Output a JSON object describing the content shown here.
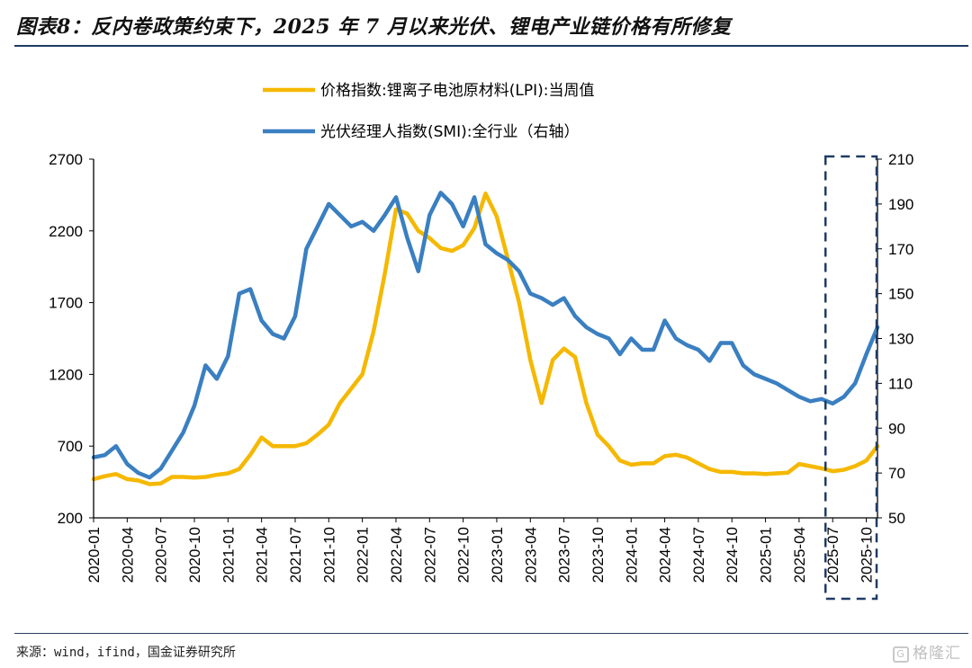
{
  "header": {
    "title": "图表8：反内卷政策约束下，2025 年 7 月以来光伏、锂电产业链价格有所修复"
  },
  "footer": {
    "source": "来源：wind，ifind，国金证券研究所",
    "watermark": "格隆汇",
    "watermark_glyph": "G"
  },
  "chart_data": {
    "type": "line",
    "x_tick_labels": [
      "2020-01",
      "2020-04",
      "2020-07",
      "2020-10",
      "2021-01",
      "2021-04",
      "2021-07",
      "2021-10",
      "2022-01",
      "2022-04",
      "2022-07",
      "2022-10",
      "2023-01",
      "2023-04",
      "2023-07",
      "2023-10",
      "2024-01",
      "2024-04",
      "2024-07",
      "2024-10",
      "2025-01",
      "2025-04",
      "2025-07",
      "2025-10"
    ],
    "x_range": [
      "2020-01",
      "2025-11"
    ],
    "y_left": {
      "min": 200,
      "max": 2700,
      "ticks": [
        200,
        700,
        1200,
        1700,
        2200,
        2700
      ]
    },
    "y_right": {
      "min": 50,
      "max": 210,
      "ticks": [
        50,
        70,
        90,
        110,
        130,
        150,
        170,
        190,
        210
      ]
    },
    "grid": false,
    "legend_position": "top-center",
    "highlight_box": {
      "from": "2025-07",
      "to": "2025-11"
    },
    "series": [
      {
        "name": "价格指数:锂离子电池原材料(LPI):当周值",
        "axis": "left",
        "color": "#f5b800",
        "points": [
          [
            "2020-01",
            470
          ],
          [
            "2020-02",
            490
          ],
          [
            "2020-03",
            505
          ],
          [
            "2020-04",
            470
          ],
          [
            "2020-05",
            460
          ],
          [
            "2020-06",
            435
          ],
          [
            "2020-07",
            440
          ],
          [
            "2020-08",
            485
          ],
          [
            "2020-09",
            485
          ],
          [
            "2020-10",
            480
          ],
          [
            "2020-11",
            485
          ],
          [
            "2020-12",
            500
          ],
          [
            "2021-01",
            510
          ],
          [
            "2021-02",
            540
          ],
          [
            "2021-03",
            640
          ],
          [
            "2021-04",
            760
          ],
          [
            "2021-05",
            700
          ],
          [
            "2021-06",
            700
          ],
          [
            "2021-07",
            700
          ],
          [
            "2021-08",
            720
          ],
          [
            "2021-09",
            780
          ],
          [
            "2021-10",
            850
          ],
          [
            "2021-11",
            1000
          ],
          [
            "2021-12",
            1100
          ],
          [
            "2022-01",
            1200
          ],
          [
            "2022-02",
            1500
          ],
          [
            "2022-03",
            1900
          ],
          [
            "2022-04",
            2350
          ],
          [
            "2022-05",
            2320
          ],
          [
            "2022-06",
            2200
          ],
          [
            "2022-07",
            2150
          ],
          [
            "2022-08",
            2080
          ],
          [
            "2022-09",
            2060
          ],
          [
            "2022-10",
            2100
          ],
          [
            "2022-11",
            2220
          ],
          [
            "2022-12",
            2460
          ],
          [
            "2023-01",
            2300
          ],
          [
            "2023-02",
            2000
          ],
          [
            "2023-03",
            1700
          ],
          [
            "2023-04",
            1300
          ],
          [
            "2023-05",
            1000
          ],
          [
            "2023-06",
            1300
          ],
          [
            "2023-07",
            1380
          ],
          [
            "2023-08",
            1320
          ],
          [
            "2023-09",
            1000
          ],
          [
            "2023-10",
            780
          ],
          [
            "2023-11",
            700
          ],
          [
            "2023-12",
            600
          ],
          [
            "2024-01",
            570
          ],
          [
            "2024-02",
            580
          ],
          [
            "2024-03",
            580
          ],
          [
            "2024-04",
            630
          ],
          [
            "2024-05",
            640
          ],
          [
            "2024-06",
            620
          ],
          [
            "2024-07",
            580
          ],
          [
            "2024-08",
            540
          ],
          [
            "2024-09",
            520
          ],
          [
            "2024-10",
            520
          ],
          [
            "2024-11",
            510
          ],
          [
            "2024-12",
            510
          ],
          [
            "2025-01",
            505
          ],
          [
            "2025-02",
            510
          ],
          [
            "2025-03",
            515
          ],
          [
            "2025-04",
            575
          ],
          [
            "2025-05",
            560
          ],
          [
            "2025-06",
            545
          ],
          [
            "2025-07",
            525
          ],
          [
            "2025-08",
            535
          ],
          [
            "2025-09",
            560
          ],
          [
            "2025-10",
            600
          ],
          [
            "2025-11",
            700
          ]
        ]
      },
      {
        "name": "光伏经理人指数(SMI):全行业（右轴）",
        "axis": "right",
        "color": "#3a7fc1",
        "points": [
          [
            "2020-01",
            77
          ],
          [
            "2020-02",
            78
          ],
          [
            "2020-03",
            82
          ],
          [
            "2020-04",
            74
          ],
          [
            "2020-05",
            70
          ],
          [
            "2020-06",
            68
          ],
          [
            "2020-07",
            72
          ],
          [
            "2020-08",
            80
          ],
          [
            "2020-09",
            88
          ],
          [
            "2020-10",
            100
          ],
          [
            "2020-11",
            118
          ],
          [
            "2020-12",
            112
          ],
          [
            "2021-01",
            122
          ],
          [
            "2021-02",
            150
          ],
          [
            "2021-03",
            152
          ],
          [
            "2021-04",
            138
          ],
          [
            "2021-05",
            132
          ],
          [
            "2021-06",
            130
          ],
          [
            "2021-07",
            140
          ],
          [
            "2021-08",
            170
          ],
          [
            "2021-09",
            180
          ],
          [
            "2021-10",
            190
          ],
          [
            "2021-11",
            185
          ],
          [
            "2021-12",
            180
          ],
          [
            "2022-01",
            182
          ],
          [
            "2022-02",
            178
          ],
          [
            "2022-03",
            185
          ],
          [
            "2022-04",
            193
          ],
          [
            "2022-05",
            175
          ],
          [
            "2022-06",
            160
          ],
          [
            "2022-07",
            185
          ],
          [
            "2022-08",
            195
          ],
          [
            "2022-09",
            190
          ],
          [
            "2022-10",
            180
          ],
          [
            "2022-11",
            193
          ],
          [
            "2022-12",
            172
          ],
          [
            "2023-01",
            168
          ],
          [
            "2023-02",
            165
          ],
          [
            "2023-03",
            160
          ],
          [
            "2023-04",
            150
          ],
          [
            "2023-05",
            148
          ],
          [
            "2023-06",
            145
          ],
          [
            "2023-07",
            148
          ],
          [
            "2023-08",
            140
          ],
          [
            "2023-09",
            135
          ],
          [
            "2023-10",
            132
          ],
          [
            "2023-11",
            130
          ],
          [
            "2023-12",
            123
          ],
          [
            "2024-01",
            130
          ],
          [
            "2024-02",
            125
          ],
          [
            "2024-03",
            125
          ],
          [
            "2024-04",
            138
          ],
          [
            "2024-05",
            130
          ],
          [
            "2024-06",
            127
          ],
          [
            "2024-07",
            125
          ],
          [
            "2024-08",
            120
          ],
          [
            "2024-09",
            128
          ],
          [
            "2024-10",
            128
          ],
          [
            "2024-11",
            118
          ],
          [
            "2024-12",
            114
          ],
          [
            "2025-01",
            112
          ],
          [
            "2025-02",
            110
          ],
          [
            "2025-03",
            107
          ],
          [
            "2025-04",
            104
          ],
          [
            "2025-05",
            102
          ],
          [
            "2025-06",
            103
          ],
          [
            "2025-07",
            101
          ],
          [
            "2025-08",
            104
          ],
          [
            "2025-09",
            110
          ],
          [
            "2025-10",
            123
          ],
          [
            "2025-11",
            135
          ]
        ]
      }
    ]
  }
}
